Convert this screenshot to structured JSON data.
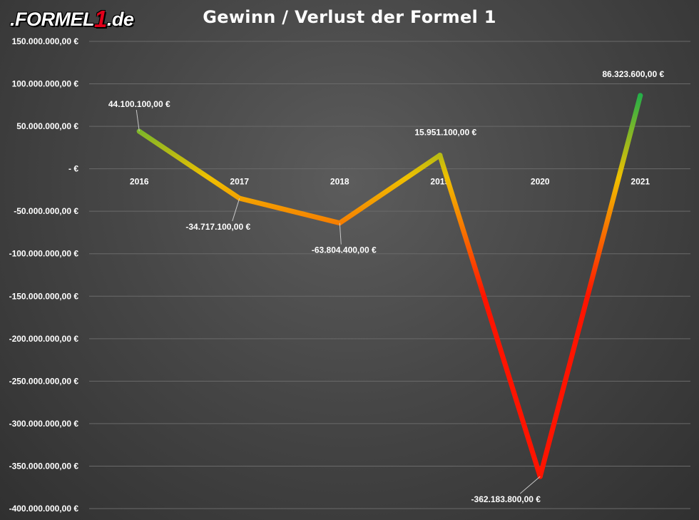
{
  "header": {
    "logo_prefix": ".FORMEL",
    "logo_digit": "1",
    "logo_suffix": ".de"
  },
  "chart_data": {
    "type": "line",
    "title": "Gewinn / Verlust der Formel 1",
    "xlabel": "",
    "ylabel": "",
    "categories": [
      "2016",
      "2017",
      "2018",
      "2019",
      "2020",
      "2021"
    ],
    "series": [
      {
        "values": [
          44100100,
          -34717100,
          -63804400,
          15951100,
          -362183800,
          86323600
        ],
        "data_labels": [
          "44.100.100,00 €",
          "-34.717.100,00 €",
          "-63.804.400,00 €",
          "15.951.100,00 €",
          "-362.183.800,00 €",
          "86.323.600,00 €"
        ]
      }
    ],
    "ylim": [
      -400000000,
      150000000
    ],
    "yticks": [
      150000000,
      100000000,
      50000000,
      0,
      -50000000,
      -100000000,
      -150000000,
      -200000000,
      -250000000,
      -300000000,
      -350000000,
      -400000000
    ],
    "ytick_labels": [
      "150.000.000,00 €",
      "100.000.000,00 €",
      "50.000.000,00 €",
      "-  €",
      "-50.000.000,00 €",
      "-100.000.000,00 €",
      "-150.000.000,00 €",
      "-200.000.000,00 €",
      "-250.000.000,00 €",
      "-300.000.000,00 €",
      "-350.000.000,00 €",
      "-400.000.000,00 €"
    ],
    "grid": true,
    "line_color_positive": "#1fae4a",
    "line_color_mid": "#f0c000",
    "line_color_negative": "#ff1400",
    "gridline_color": "#6a6a6a"
  }
}
